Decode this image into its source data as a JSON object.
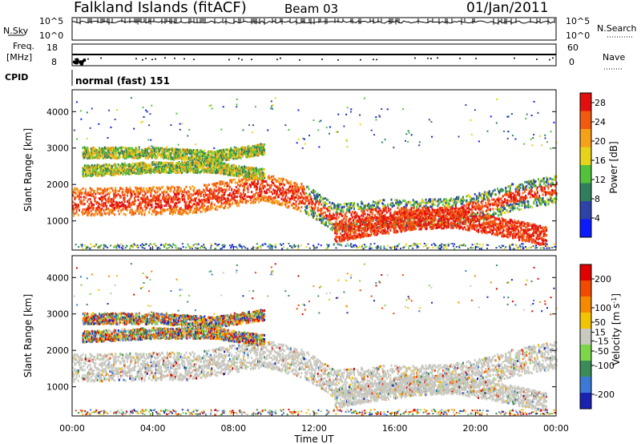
{
  "header": {
    "title": "Falkland Islands (fitACF)",
    "beam": "Beam 03",
    "date": "01/Jan/2011"
  },
  "panels": {
    "nsky_label": "N.Sky",
    "nsearch_label": "N.Search",
    "freq_label_line1": "Freq.",
    "freq_label_line2": "[MHz]",
    "nave_label": "Nave",
    "cpid_label": "CPID",
    "cpid_value": "normal (fast) 151",
    "noise_left_ticks": [
      "10^5",
      "10^0"
    ],
    "noise_right_ticks": [
      "10^5",
      "10^0"
    ],
    "freq_ticks": [
      "18",
      "8"
    ],
    "nave_ticks": [
      "60",
      "0"
    ]
  },
  "chart_data": [
    {
      "type": "heatmap",
      "title": "",
      "xlabel": "Time UT",
      "ylabel": "Slant Range [km]",
      "xlim": [
        "00:00",
        "24:00"
      ],
      "ylim": [
        200,
        4600
      ],
      "x_ticks": [
        "00:00",
        "04:00",
        "08:00",
        "12:00",
        "16:00",
        "20:00",
        "00:00"
      ],
      "y_ticks": [
        1000,
        2000,
        3000,
        4000
      ],
      "colorbar": {
        "label": "Power [dB]",
        "ticks": [
          4,
          8,
          12,
          16,
          20,
          24,
          28
        ],
        "range": [
          0,
          30
        ],
        "colors": [
          "#0b1aff",
          "#2e43a8",
          "#2f7f5e",
          "#52c23a",
          "#e8d21a",
          "#f7a01a",
          "#f25a10",
          "#e30f0f"
        ]
      },
      "bands": [
        {
          "t": [
            0,
            6,
            9.5,
            11.5,
            13,
            15.5,
            18.5,
            20.5,
            22,
            24
          ],
          "range": [
            1550,
            1600,
            1950,
            1650,
            1100,
            1250,
            1250,
            1450,
            1700,
            1900
          ]
        },
        {
          "t": [
            13,
            15,
            17,
            19,
            21,
            23.5
          ],
          "range": [
            700,
            900,
            1050,
            1100,
            900,
            600
          ]
        },
        {
          "t": [
            0.5,
            4,
            7,
            9.5
          ],
          "range": [
            2900,
            2900,
            2800,
            3000
          ]
        },
        {
          "t": [
            0.5,
            4,
            7,
            9.5
          ],
          "range": [
            2400,
            2500,
            2500,
            2300
          ]
        }
      ]
    },
    {
      "type": "heatmap",
      "title": "",
      "xlabel": "Time UT",
      "ylabel": "Slant Range [km]",
      "xlim": [
        "00:00",
        "24:00"
      ],
      "ylim": [
        200,
        4600
      ],
      "x_ticks": [
        "00:00",
        "04:00",
        "08:00",
        "12:00",
        "16:00",
        "20:00",
        "00:00"
      ],
      "y_ticks": [
        1000,
        2000,
        3000,
        4000
      ],
      "colorbar": {
        "label": "Velocity [m s^-1]",
        "ticks": [
          200,
          100,
          50,
          15,
          -15,
          -50,
          -100,
          -200
        ],
        "range": [
          -250,
          250
        ],
        "colors": [
          "#1a23b0",
          "#3a7ad6",
          "#3a8c5a",
          "#7dd64a",
          "#c9c9c0",
          "#f2c300",
          "#f58a00",
          "#f24a00",
          "#e00000"
        ]
      },
      "ground_scatter_color": "#c8c8c0"
    }
  ]
}
